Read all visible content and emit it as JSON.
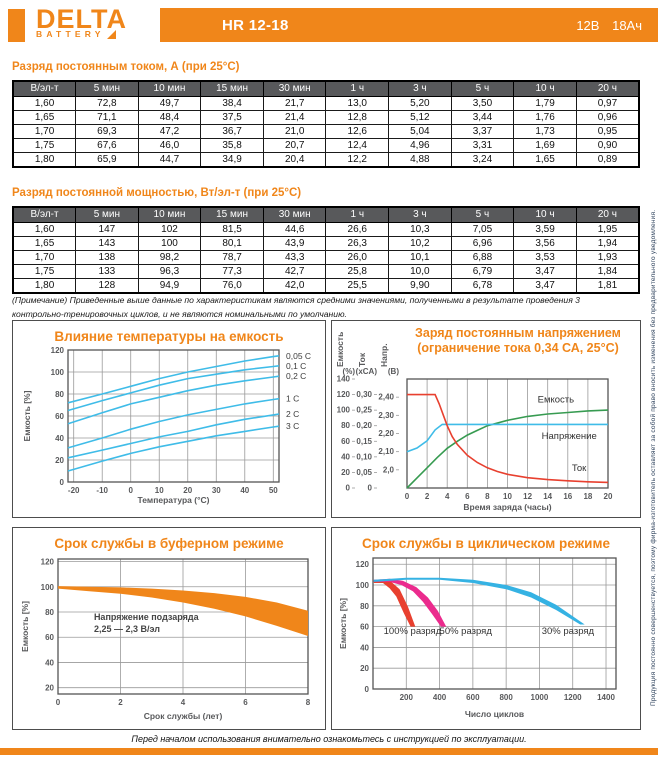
{
  "header": {
    "brand": "DELTA",
    "brand_sub": "BATTERY",
    "model": "HR 12-18",
    "voltage": "12В",
    "capacity": "18Ач"
  },
  "tables": [
    {
      "title": "Разряд постоянным током, А (при 25°C)",
      "headers": [
        "В/эл-т",
        "5 мин",
        "10 мин",
        "15 мин",
        "30 мин",
        "1 ч",
        "3 ч",
        "5 ч",
        "10 ч",
        "20 ч"
      ],
      "rows": [
        [
          "1,60",
          "72,8",
          "49,7",
          "38,4",
          "21,7",
          "13,0",
          "5,20",
          "3,50",
          "1,79",
          "0,97"
        ],
        [
          "1,65",
          "71,1",
          "48,4",
          "37,5",
          "21,4",
          "12,8",
          "5,12",
          "3,44",
          "1,76",
          "0,96"
        ],
        [
          "1,70",
          "69,3",
          "47,2",
          "36,7",
          "21,0",
          "12,6",
          "5,04",
          "3,37",
          "1,73",
          "0,95"
        ],
        [
          "1,75",
          "67,6",
          "46,0",
          "35,8",
          "20,7",
          "12,4",
          "4,96",
          "3,31",
          "1,69",
          "0,90"
        ],
        [
          "1,80",
          "65,9",
          "44,7",
          "34,9",
          "20,4",
          "12,2",
          "4,88",
          "3,24",
          "1,65",
          "0,89"
        ]
      ]
    },
    {
      "title": "Разряд постоянной мощностью, Вт/эл-т (при 25°C)",
      "headers": [
        "В/эл-т",
        "5 мин",
        "10 мин",
        "15 мин",
        "30 мин",
        "1 ч",
        "3 ч",
        "5 ч",
        "10 ч",
        "20 ч"
      ],
      "rows": [
        [
          "1,60",
          "147",
          "102",
          "81,5",
          "44,6",
          "26,6",
          "10,3",
          "7,05",
          "3,59",
          "1,95"
        ],
        [
          "1,65",
          "143",
          "100",
          "80,1",
          "43,9",
          "26,3",
          "10,2",
          "6,96",
          "3,56",
          "1,94"
        ],
        [
          "1,70",
          "138",
          "98,2",
          "78,7",
          "43,3",
          "26,0",
          "10,1",
          "6,88",
          "3,53",
          "1,93"
        ],
        [
          "1,75",
          "133",
          "96,3",
          "77,3",
          "42,7",
          "25,8",
          "10,0",
          "6,79",
          "3,47",
          "1,84"
        ],
        [
          "1,80",
          "128",
          "94,9",
          "76,0",
          "42,0",
          "25,5",
          "9,90",
          "6,78",
          "3,47",
          "1,81"
        ]
      ]
    }
  ],
  "note": "(Примечание) Приведенные выше данные по характеристикам являются средними значениями, полученными в результате проведения 3 контрольно-тренировочных циклов, и не являются номинальными по умолчанию.",
  "footer": "Перед началом использования внимательно ознакомьтесь с инструкцией по эксплуатации.",
  "side_note": "Продукция постоянно совершенствуется, поэтому фирма-изготовитель оставляет за собой право вносить изменения без предварительного уведомления.",
  "colors": {
    "accent_orange": "#f0861a",
    "table_header_gray": "#58595b",
    "curve_cyan": "#3fbce8",
    "curve_green": "#379b51",
    "curve_red": "#e8402f",
    "curve_magenta": "#eb2b8d"
  },
  "chart_data": [
    {
      "id": "temp",
      "type": "line",
      "title": "Влияние температуры на емкость",
      "xlabel": "Температура (°C)",
      "ylabel": "Емкость [%]",
      "xlim": [
        -22,
        52
      ],
      "ylim": [
        0,
        120
      ],
      "xticks": [
        -20,
        -10,
        0,
        10,
        20,
        30,
        40,
        50
      ],
      "yticks": [
        0,
        20,
        40,
        60,
        80,
        100,
        120
      ],
      "line_color": "#3fbce8",
      "x": [
        -22,
        -10,
        0,
        10,
        20,
        30,
        40,
        50,
        52
      ],
      "series": [
        {
          "name": "0,05 C",
          "values": [
            72,
            80,
            87,
            94,
            100,
            105,
            110,
            114,
            114.7
          ]
        },
        {
          "name": "0,1 C",
          "values": [
            65,
            74,
            81,
            88,
            94,
            98,
            102,
            105,
            105.6
          ]
        },
        {
          "name": "0,2 C",
          "values": [
            53,
            63,
            71,
            77,
            83,
            88,
            92,
            95.5,
            96.2
          ]
        },
        {
          "name": "1 C",
          "values": [
            31,
            40,
            48,
            55,
            61,
            66,
            71,
            75,
            75.7
          ]
        },
        {
          "name": "2 C",
          "values": [
            22,
            29,
            35,
            41,
            46,
            52,
            57,
            61,
            61.8
          ]
        },
        {
          "name": "3 C",
          "values": [
            10,
            19,
            26,
            32,
            37,
            42,
            46,
            50,
            50.7
          ]
        }
      ]
    },
    {
      "id": "charge",
      "type": "multi-axis-line",
      "title_line1": "Заряд постоянным напряжением",
      "title_line2": "(ограничение тока 0,34 СА, 25°C)",
      "xlabel": "Время заряда (часы)",
      "xlim": [
        0,
        20
      ],
      "xticks": [
        0,
        2,
        4,
        6,
        8,
        10,
        12,
        14,
        16,
        18,
        20
      ],
      "axes": [
        {
          "title": "Емкость",
          "unit": "(%)",
          "lim": [
            0,
            140
          ],
          "ticks": [
            0,
            20,
            40,
            60,
            80,
            100,
            120,
            140
          ],
          "labels": [
            "0",
            "20",
            "40",
            "60",
            "80",
            "100",
            "120",
            "140"
          ]
        },
        {
          "title": "Ток",
          "unit": "(xCA)",
          "lim": [
            0,
            0.35
          ],
          "ticks": [
            0,
            0.05,
            0.1,
            0.15,
            0.2,
            0.25,
            0.3
          ],
          "labels": [
            "0",
            "0,05",
            "0,10",
            "0,15",
            "0,20",
            "0,25",
            "0,30"
          ]
        },
        {
          "title": "Напр.",
          "unit": "(В)",
          "lim": [
            1.9,
            2.5
          ],
          "ticks": [
            2.0,
            2.1,
            2.2,
            2.3,
            2.4
          ],
          "labels": [
            "2,0",
            "2,10",
            "2,20",
            "2,30",
            "2,40"
          ]
        }
      ],
      "series": [
        {
          "name": "Емкость",
          "axis": 0,
          "color": "#379b51",
          "points": [
            [
              0,
              0
            ],
            [
              1,
              13
            ],
            [
              2,
              26
            ],
            [
              3,
              39
            ],
            [
              4,
              51
            ],
            [
              5,
              60
            ],
            [
              6,
              68
            ],
            [
              7,
              74
            ],
            [
              8,
              80
            ],
            [
              10,
              87
            ],
            [
              12,
              92
            ],
            [
              14,
              95
            ],
            [
              16,
              97
            ],
            [
              18,
              99
            ],
            [
              20,
              100
            ]
          ],
          "label_at": [
            13.0,
            110
          ]
        },
        {
          "name": "Напряжение",
          "axis": 2,
          "color": "#3fbce8",
          "points": [
            [
              0,
              2.1
            ],
            [
              1,
              2.12
            ],
            [
              2,
              2.16
            ],
            [
              2.8,
              2.22
            ],
            [
              3.5,
              2.25
            ],
            [
              20,
              2.25
            ]
          ],
          "label_at": [
            13.4,
            2.17
          ]
        },
        {
          "name": "Ток",
          "axis": 1,
          "color": "#e8402f",
          "points": [
            [
              0,
              0.3
            ],
            [
              2.8,
              0.3
            ],
            [
              3.2,
              0.27
            ],
            [
              3.6,
              0.235
            ],
            [
              4,
              0.2
            ],
            [
              4.5,
              0.165
            ],
            [
              5,
              0.14
            ],
            [
              6,
              0.105
            ],
            [
              7,
              0.082
            ],
            [
              8,
              0.065
            ],
            [
              9,
              0.053
            ],
            [
              10,
              0.044
            ],
            [
              12,
              0.033
            ],
            [
              14,
              0.027
            ],
            [
              16,
              0.023
            ],
            [
              18,
              0.02
            ],
            [
              20,
              0.018
            ]
          ],
          "label_at": [
            16.4,
            0.055
          ]
        }
      ]
    },
    {
      "id": "buffer",
      "type": "band",
      "title": "Срок службы в буферном режиме",
      "xlabel": "Срок службы (лет)",
      "ylabel": "Емкость [%]",
      "xlim": [
        0,
        8
      ],
      "ylim": [
        15,
        122
      ],
      "xticks": [
        0,
        2,
        4,
        6,
        8
      ],
      "yticks": [
        20,
        40,
        60,
        80,
        100,
        120
      ],
      "bands": [
        {
          "name": "2,25–2,3 В/эл",
          "color": "#f0861a",
          "upper": [
            [
              0,
              100.5
            ],
            [
              1,
              100
            ],
            [
              2,
              99.5
            ],
            [
              3,
              98.5
            ],
            [
              4,
              97
            ],
            [
              5,
              95
            ],
            [
              6,
              92
            ],
            [
              7,
              87.5
            ],
            [
              8,
              81
            ]
          ],
          "lower": [
            [
              0,
              98.5
            ],
            [
              1,
              96.5
            ],
            [
              2,
              94.5
            ],
            [
              3,
              91.5
            ],
            [
              4,
              87.5
            ],
            [
              5,
              82.5
            ],
            [
              6,
              76.5
            ],
            [
              7,
              69
            ],
            [
              8,
              61
            ]
          ]
        }
      ],
      "annotations": [
        {
          "x": 1.15,
          "y": 73.5,
          "text": "Напряжение подзаряда",
          "anchor": "start",
          "bold": true
        },
        {
          "x": 1.15,
          "y": 64,
          "text": "2,25 — 2,3 В/эл",
          "anchor": "start",
          "bold": true
        }
      ]
    },
    {
      "id": "cycle",
      "type": "band",
      "title": "Срок службы в циклическом режиме",
      "xlabel": "Число циклов",
      "ylabel": "Емкость [%]",
      "xlim": [
        0,
        1460
      ],
      "ylim": [
        0,
        126
      ],
      "xticks": [
        200,
        400,
        600,
        800,
        1000,
        1200,
        1400
      ],
      "yticks": [
        0,
        20,
        40,
        60,
        80,
        100,
        120
      ],
      "bands": [
        {
          "name": "100% разряд",
          "color": "#e8402f",
          "upper": [
            [
              5,
              104
            ],
            [
              60,
              105
            ],
            [
              110,
              103
            ],
            [
              160,
              96
            ],
            [
              210,
              79
            ],
            [
              254,
              60
            ]
          ],
          "lower": [
            [
              5,
              102
            ],
            [
              60,
              102
            ],
            [
              100,
              97
            ],
            [
              140,
              89
            ],
            [
              185,
              73
            ],
            [
              226,
              60
            ]
          ]
        },
        {
          "name": "50% разряд",
          "color": "#eb2b8d",
          "upper": [
            [
              5,
              105
            ],
            [
              100,
              106
            ],
            [
              180,
              104
            ],
            [
              260,
              98
            ],
            [
              330,
              88
            ],
            [
              390,
              75
            ],
            [
              440,
              60
            ]
          ],
          "lower": [
            [
              5,
              103
            ],
            [
              100,
              103
            ],
            [
              170,
              100
            ],
            [
              240,
              94
            ],
            [
              300,
              84
            ],
            [
              355,
              72
            ],
            [
              408,
              60
            ]
          ]
        },
        {
          "name": "30% разряд",
          "color": "#35b2e3",
          "upper": [
            [
              5,
              105
            ],
            [
              200,
              107
            ],
            [
              400,
              107
            ],
            [
              600,
              105
            ],
            [
              800,
              100
            ],
            [
              950,
              93
            ],
            [
              1100,
              81
            ],
            [
              1272,
              62
            ]
          ],
          "lower": [
            [
              5,
              103
            ],
            [
              200,
              105
            ],
            [
              400,
              105
            ],
            [
              600,
              102
            ],
            [
              800,
              96
            ],
            [
              950,
              88
            ],
            [
              1100,
              76
            ],
            [
              1245,
              62
            ]
          ]
        }
      ],
      "annotations": [
        {
          "x": 237,
          "y": 53,
          "text": "100% разряд",
          "anchor": "middle"
        },
        {
          "x": 557,
          "y": 53,
          "text": "50% разряд",
          "anchor": "middle"
        },
        {
          "x": 1171,
          "y": 53,
          "text": "30% разряд",
          "anchor": "middle"
        }
      ]
    }
  ]
}
